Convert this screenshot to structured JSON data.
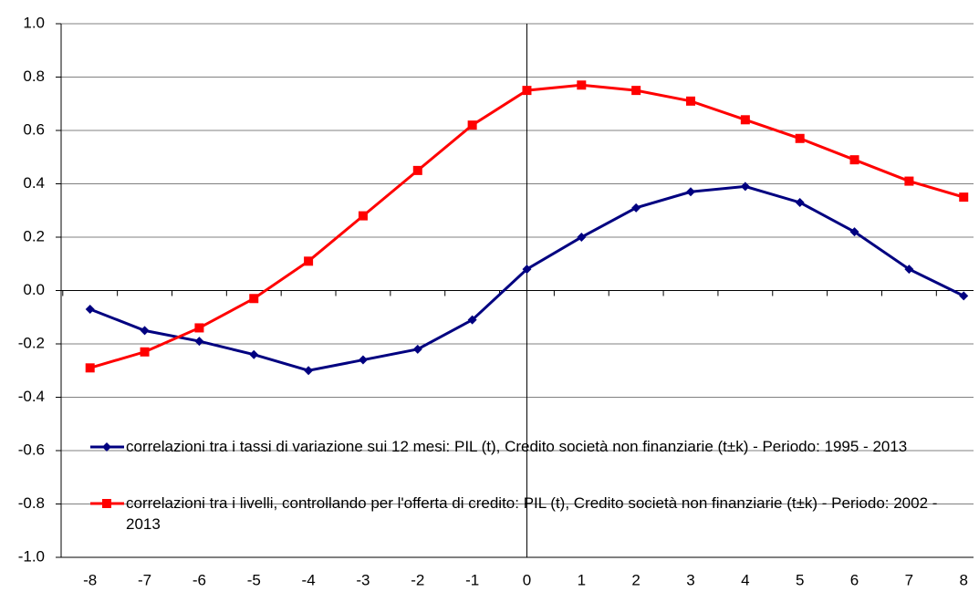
{
  "chart_data": {
    "type": "line",
    "x": [
      -8,
      -7,
      -6,
      -5,
      -4,
      -3,
      -2,
      -1,
      0,
      1,
      2,
      3,
      4,
      5,
      6,
      7,
      8
    ],
    "series": [
      {
        "name": "correlazioni tra i tassi di variazione sui 12 mesi: PIL (t), Credito società non finanziarie (t±k)  - Periodo: 1995 - 2013",
        "color": "#000080",
        "marker": "diamond",
        "values": [
          -0.07,
          -0.15,
          -0.19,
          -0.24,
          -0.3,
          -0.26,
          -0.22,
          -0.11,
          0.08,
          0.2,
          0.31,
          0.37,
          0.39,
          0.33,
          0.22,
          0.08,
          -0.02
        ]
      },
      {
        "name": "correlazioni tra i livelli, controllando per l'offerta di credito: PIL (t), Credito società non finanziarie (t±k)  - Periodo: 2002 - 2013",
        "color": "#ff0000",
        "marker": "square",
        "values": [
          -0.29,
          -0.23,
          -0.14,
          -0.03,
          0.11,
          0.28,
          0.45,
          0.62,
          0.75,
          0.77,
          0.75,
          0.71,
          0.64,
          0.57,
          0.49,
          0.41,
          0.35
        ]
      }
    ],
    "xlim": [
      -8.53,
      8.18
    ],
    "xticks": [
      -8,
      -7,
      -6,
      -5,
      -4,
      -3,
      -2,
      -1,
      0,
      1,
      2,
      3,
      4,
      5,
      6,
      7,
      8
    ],
    "ylim": [
      -1,
      1
    ],
    "yticks": [
      {
        "value": 1,
        "label": "1.0"
      },
      0.8,
      0.6,
      0.4,
      0.2,
      {
        "value": 0,
        "label": "0.0"
      },
      -0.2,
      -0.4,
      -0.6,
      -0.8,
      {
        "value": -1,
        "label": "-1.0"
      }
    ],
    "grid": true,
    "legend": "lower-left"
  }
}
